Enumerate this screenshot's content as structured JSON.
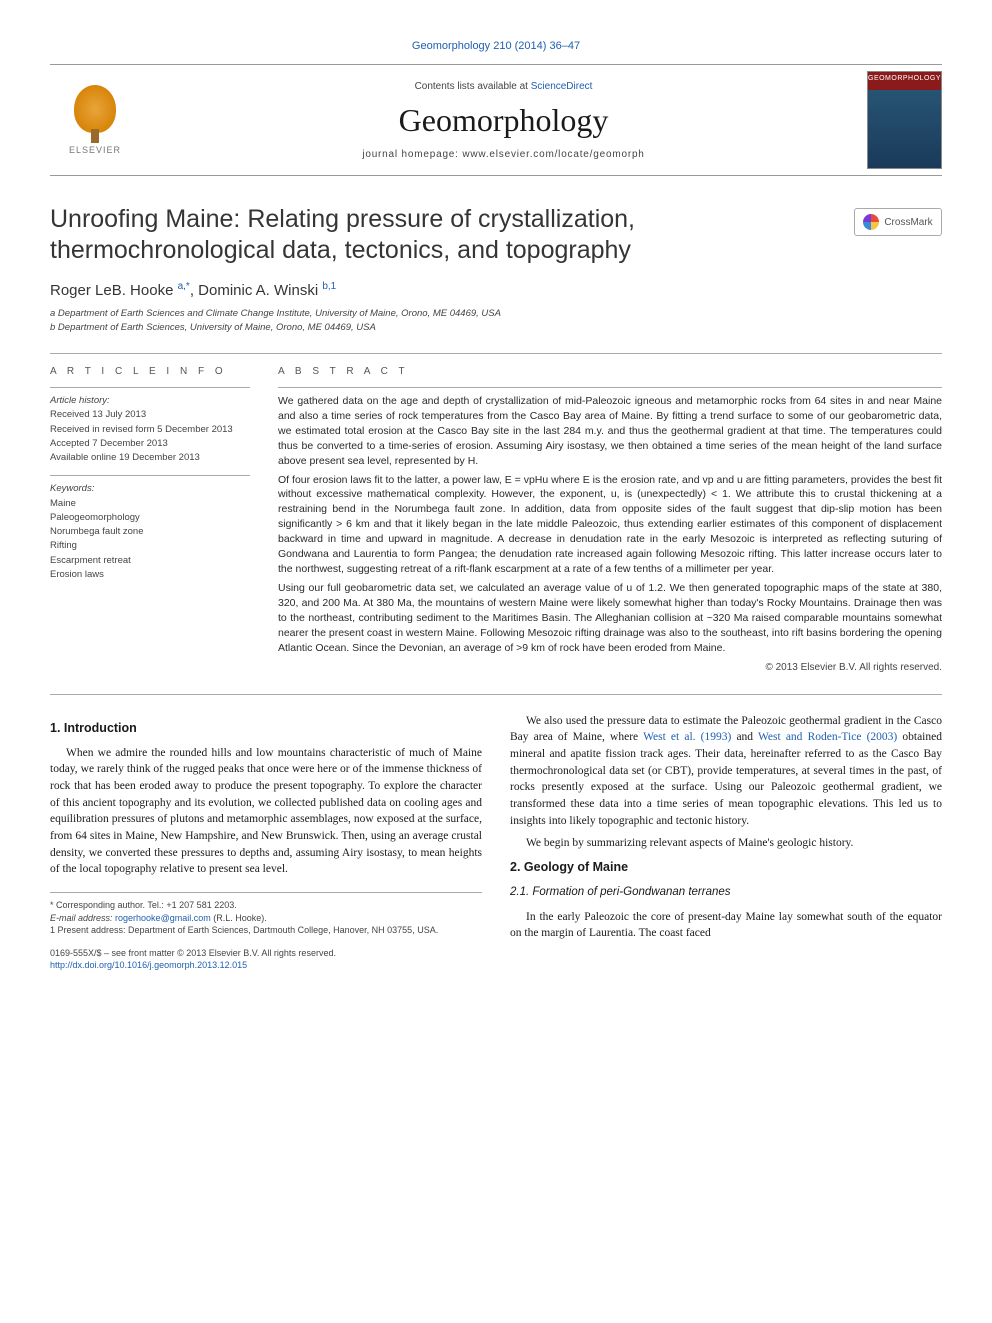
{
  "breadcrumb": "Geomorphology 210 (2014) 36–47",
  "masthead": {
    "contents_prefix": "Contents lists available at ",
    "contents_link": "ScienceDirect",
    "journal": "Geomorphology",
    "homepage_label": "journal homepage: ",
    "homepage": "www.elsevier.com/locate/geomorph",
    "publisher": "ELSEVIER",
    "cover_label": "GEOMORPHOLOGY"
  },
  "title": "Unroofing Maine: Relating pressure of crystallization, thermochronological data, tectonics, and topography",
  "crossmark": "CrossMark",
  "authors_html": "Roger LeB. Hooke ",
  "author1_sup": "a,*",
  "authors_mid": ", Dominic A. Winski ",
  "author2_sup": "b,1",
  "affiliations": {
    "a": "a Department of Earth Sciences and Climate Change Institute, University of Maine, Orono, ME 04469, USA",
    "b": "b Department of Earth Sciences, University of Maine, Orono, ME 04469, USA"
  },
  "info": {
    "heading": "A R T I C L E   I N F O",
    "history_label": "Article history:",
    "history": {
      "received": "Received 13 July 2013",
      "revised": "Received in revised form 5 December 2013",
      "accepted": "Accepted 7 December 2013",
      "online": "Available online 19 December 2013"
    },
    "keywords_label": "Keywords:",
    "keywords": [
      "Maine",
      "Paleogeomorphology",
      "Norumbega fault zone",
      "Rifting",
      "Escarpment retreat",
      "Erosion laws"
    ]
  },
  "abstract": {
    "heading": "A B S T R A C T",
    "p1": "We gathered data on the age and depth of crystallization of mid-Paleozoic igneous and metamorphic rocks from 64 sites in and near Maine and also a time series of rock temperatures from the Casco Bay area of Maine. By fitting a trend surface to some of our geobarometric data, we estimated total erosion at the Casco Bay site in the last 284 m.y. and thus the geothermal gradient at that time. The temperatures could thus be converted to a time-series of erosion. Assuming Airy isostasy, we then obtained a time series of the mean height of the land surface above present sea level, represented by H.",
    "p2": "Of four erosion laws fit to the latter, a power law, E = vpHu where E is the erosion rate, and vp and u are fitting parameters, provides the best fit without excessive mathematical complexity. However, the exponent, u, is (unexpectedly) < 1. We attribute this to crustal thickening at a restraining bend in the Norumbega fault zone. In addition, data from opposite sides of the fault suggest that dip-slip motion has been significantly > 6 km and that it likely began in the late middle Paleozoic, thus extending earlier estimates of this component of displacement backward in time and upward in magnitude. A decrease in denudation rate in the early Mesozoic is interpreted as reflecting suturing of Gondwana and Laurentia to form Pangea; the denudation rate increased again following Mesozoic rifting. This latter increase occurs later to the northwest, suggesting retreat of a rift-flank escarpment at a rate of a few tenths of a millimeter per year.",
    "p3": "Using our full geobarometric data set, we calculated an average value of u of 1.2. We then generated topographic maps of the state at 380, 320, and 200 Ma. At 380 Ma, the mountains of western Maine were likely somewhat higher than today's Rocky Mountains. Drainage then was to the northeast, contributing sediment to the Maritimes Basin. The Alleghanian collision at ~320 Ma raised comparable mountains somewhat nearer the present coast in western Maine. Following Mesozoic rifting drainage was also to the southeast, into rift basins bordering the opening Atlantic Ocean. Since the Devonian, an average of >9 km of rock have been eroded from Maine.",
    "copyright": "© 2013 Elsevier B.V. All rights reserved."
  },
  "body": {
    "s1_heading": "1. Introduction",
    "s1_p1": "When we admire the rounded hills and low mountains characteristic of much of Maine today, we rarely think of the rugged peaks that once were here or of the immense thickness of rock that has been eroded away to produce the present topography. To explore the character of this ancient topography and its evolution, we collected published data on cooling ages and equilibration pressures of plutons and metamorphic assemblages, now exposed at the surface, from 64 sites in Maine, New Hampshire, and New Brunswick. Then, using an average crustal density, we converted these pressures to depths and, assuming Airy isostasy, to mean heights of the local topography relative to present sea level.",
    "col2_p1_pre": "We also used the pressure data to estimate the Paleozoic geothermal gradient in the Casco Bay area of Maine, where ",
    "col2_link1": "West et al. (1993)",
    "col2_p1_mid": " and ",
    "col2_link2": "West and Roden-Tice (2003)",
    "col2_p1_post": " obtained mineral and apatite fission track ages. Their data, hereinafter referred to as the Casco Bay thermochronological data set (or CBT), provide temperatures, at several times in the past, of rocks presently exposed at the surface. Using our Paleozoic geothermal gradient, we transformed these data into a time series of mean topographic elevations. This led us to insights into likely topographic and tectonic history.",
    "col2_p2": "We begin by summarizing relevant aspects of Maine's geologic history.",
    "s2_heading": "2. Geology of Maine",
    "s21_heading": "2.1. Formation of peri-Gondwanan terranes",
    "s21_p1": "In the early Paleozoic the core of present-day Maine lay somewhat south of the equator on the margin of Laurentia. The coast faced"
  },
  "footnotes": {
    "corr": "* Corresponding author. Tel.: +1 207 581 2203.",
    "email_label": "E-mail address: ",
    "email": "rogerhooke@gmail.com",
    "email_post": " (R.L. Hooke).",
    "fn1": "1 Present address: Department of Earth Sciences, Dartmouth College, Hanover, NH 03755, USA."
  },
  "footer": {
    "issn": "0169-555X/$ – see front matter © 2013 Elsevier B.V. All rights reserved.",
    "doi": "http://dx.doi.org/10.1016/j.geomorph.2013.12.015"
  },
  "colors": {
    "link": "#2060b0",
    "text": "#1a1a1a",
    "muted": "#444",
    "rule": "#aaa"
  }
}
